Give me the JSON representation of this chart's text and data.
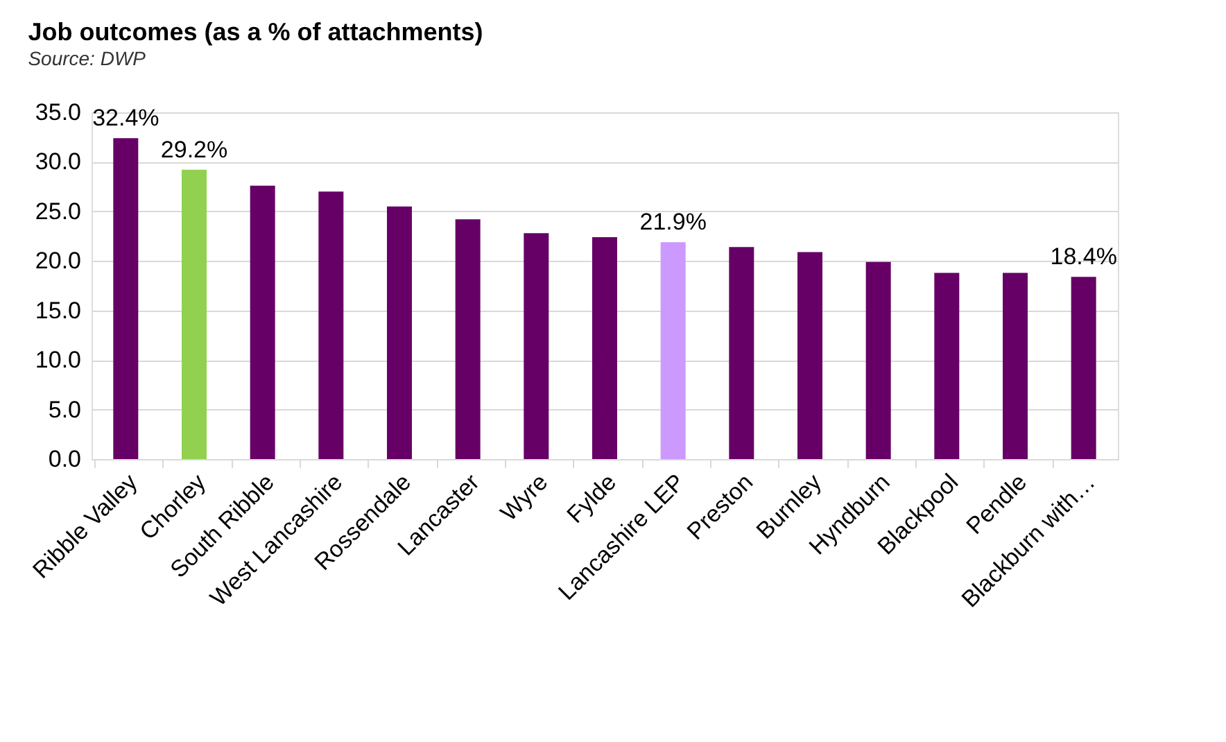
{
  "chart_data": {
    "type": "bar",
    "title": "Job outcomes (as a % of attachments)",
    "annotations": [
      "Source: DWP"
    ],
    "categories": [
      "Ribble Valley",
      "Chorley",
      "South Ribble",
      "West Lancashire",
      "Rossendale",
      "Lancaster",
      "Wyre",
      "Fylde",
      "Lancashire LEP",
      "Preston",
      "Burnley",
      "Hyndburn",
      "Blackpool",
      "Pendle",
      "Blackburn with…"
    ],
    "values": [
      32.4,
      29.2,
      27.6,
      27.0,
      25.5,
      24.2,
      22.8,
      22.4,
      21.9,
      21.4,
      20.9,
      19.9,
      18.8,
      18.8,
      18.4
    ],
    "colors": [
      "#660066",
      "#92d050",
      "#660066",
      "#660066",
      "#660066",
      "#660066",
      "#660066",
      "#660066",
      "#cc99ff",
      "#660066",
      "#660066",
      "#660066",
      "#660066",
      "#660066",
      "#660066"
    ],
    "value_labels": [
      "32.4%",
      "29.2%",
      null,
      null,
      null,
      null,
      null,
      null,
      "21.9%",
      null,
      null,
      null,
      null,
      null,
      "18.4%"
    ],
    "ylim": [
      0,
      35
    ],
    "yticks": [
      {
        "value": 0,
        "label": "0.0"
      },
      {
        "value": 5,
        "label": "5.0"
      },
      {
        "value": 10,
        "label": "10.0"
      },
      {
        "value": 15,
        "label": "15.0"
      },
      {
        "value": 20,
        "label": "20.0"
      },
      {
        "value": 25,
        "label": "25.0"
      },
      {
        "value": 30,
        "label": "30.0"
      },
      {
        "value": 35,
        "label": "35.0"
      }
    ],
    "grid": "y"
  }
}
